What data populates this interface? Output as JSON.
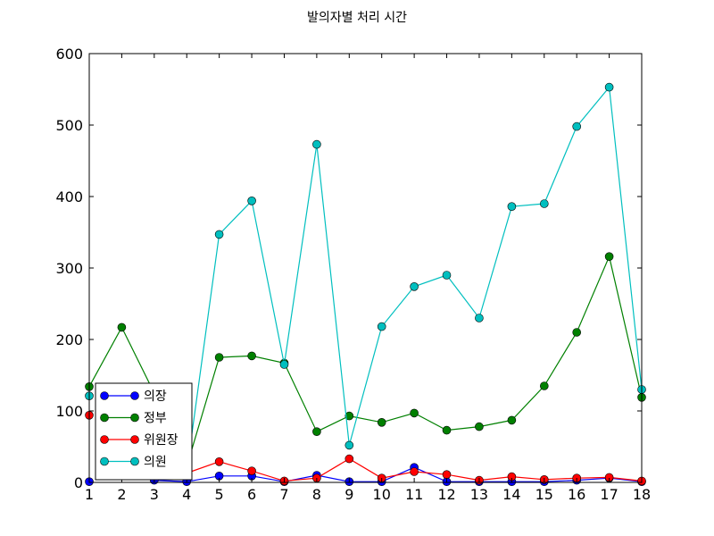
{
  "chart_data": {
    "type": "line",
    "title": "발의자별 처리 시간",
    "xlabel": "",
    "ylabel": "",
    "x": [
      1,
      2,
      3,
      4,
      5,
      6,
      7,
      8,
      9,
      10,
      11,
      12,
      13,
      14,
      15,
      16,
      17,
      18
    ],
    "xlim": [
      1,
      18
    ],
    "ylim": [
      0,
      600
    ],
    "yticks": [
      0,
      100,
      200,
      300,
      400,
      500,
      600
    ],
    "grid": false,
    "legend_position": "lower-left",
    "series": [
      {
        "name": "의장",
        "color": "#0000ff",
        "values": [
          1,
          null,
          3,
          1,
          9,
          9,
          1,
          10,
          1,
          1,
          21,
          1,
          1,
          1,
          1,
          3,
          6,
          1
        ]
      },
      {
        "name": "정부",
        "color": "#008000",
        "values": [
          134,
          217,
          125,
          22,
          175,
          177,
          167,
          71,
          93,
          84,
          97,
          73,
          78,
          87,
          135,
          210,
          316,
          119
        ]
      },
      {
        "name": "위원장",
        "color": "#ff0000",
        "values": [
          94,
          null,
          9,
          13,
          29,
          16,
          2,
          6,
          33,
          6,
          15,
          11,
          3,
          8,
          4,
          6,
          7,
          2
        ]
      },
      {
        "name": "의원",
        "color": "#00bfbf",
        "values": [
          121,
          null,
          120,
          15,
          347,
          394,
          165,
          473,
          52,
          218,
          274,
          290,
          230,
          386,
          390,
          498,
          553,
          130
        ]
      }
    ]
  }
}
